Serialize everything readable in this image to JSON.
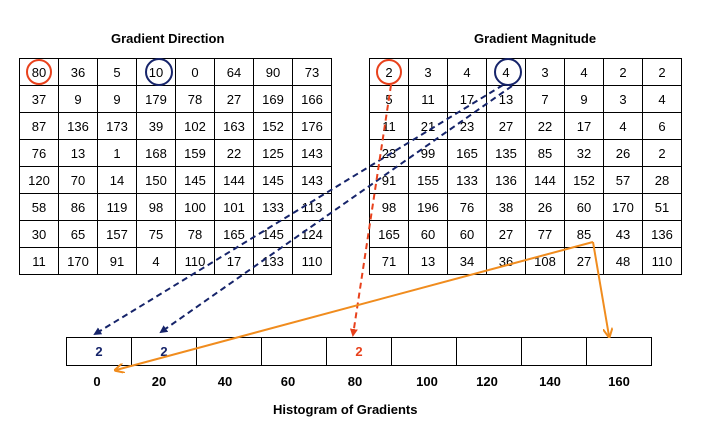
{
  "direction": {
    "title": "Gradient Direction",
    "rows": [
      [
        "80",
        "36",
        "5",
        "10",
        "0",
        "64",
        "90",
        "73"
      ],
      [
        "37",
        "9",
        "9",
        "179",
        "78",
        "27",
        "169",
        "166"
      ],
      [
        "87",
        "136",
        "173",
        "39",
        "102",
        "163",
        "152",
        "176"
      ],
      [
        "76",
        "13",
        "1",
        "168",
        "159",
        "22",
        "125",
        "143"
      ],
      [
        "120",
        "70",
        "14",
        "150",
        "145",
        "144",
        "145",
        "143"
      ],
      [
        "58",
        "86",
        "119",
        "98",
        "100",
        "101",
        "133",
        "113"
      ],
      [
        "30",
        "65",
        "157",
        "75",
        "78",
        "165",
        "145",
        "124"
      ],
      [
        "11",
        "170",
        "91",
        "4",
        "110",
        "17",
        "133",
        "110"
      ]
    ]
  },
  "magnitude": {
    "title": "Gradient Magnitude",
    "rows": [
      [
        "2",
        "3",
        "4",
        "4",
        "3",
        "4",
        "2",
        "2"
      ],
      [
        "5",
        "11",
        "17",
        "13",
        "7",
        "9",
        "3",
        "4"
      ],
      [
        "11",
        "21",
        "23",
        "27",
        "22",
        "17",
        "4",
        "6"
      ],
      [
        "23",
        "99",
        "165",
        "135",
        "85",
        "32",
        "26",
        "2"
      ],
      [
        "91",
        "155",
        "133",
        "136",
        "144",
        "152",
        "57",
        "28"
      ],
      [
        "98",
        "196",
        "76",
        "38",
        "26",
        "60",
        "170",
        "51"
      ],
      [
        "165",
        "60",
        "60",
        "27",
        "77",
        "85",
        "43",
        "136"
      ],
      [
        "71",
        "13",
        "34",
        "36",
        "108",
        "27",
        "48",
        "110"
      ]
    ]
  },
  "histogram": {
    "title": "Histogram of Gradients",
    "bins": [
      {
        "label": "0",
        "value": "2"
      },
      {
        "label": "20",
        "value": "2"
      },
      {
        "label": "40",
        "value": ""
      },
      {
        "label": "60",
        "value": ""
      },
      {
        "label": "80",
        "value": "2"
      },
      {
        "label": "100",
        "value": ""
      },
      {
        "label": "120",
        "value": ""
      },
      {
        "label": "140",
        "value": ""
      },
      {
        "label": "160",
        "value": ""
      }
    ]
  },
  "colors": {
    "red": "#e8411c",
    "blue": "#16246a",
    "orange": "#f08c1e"
  }
}
